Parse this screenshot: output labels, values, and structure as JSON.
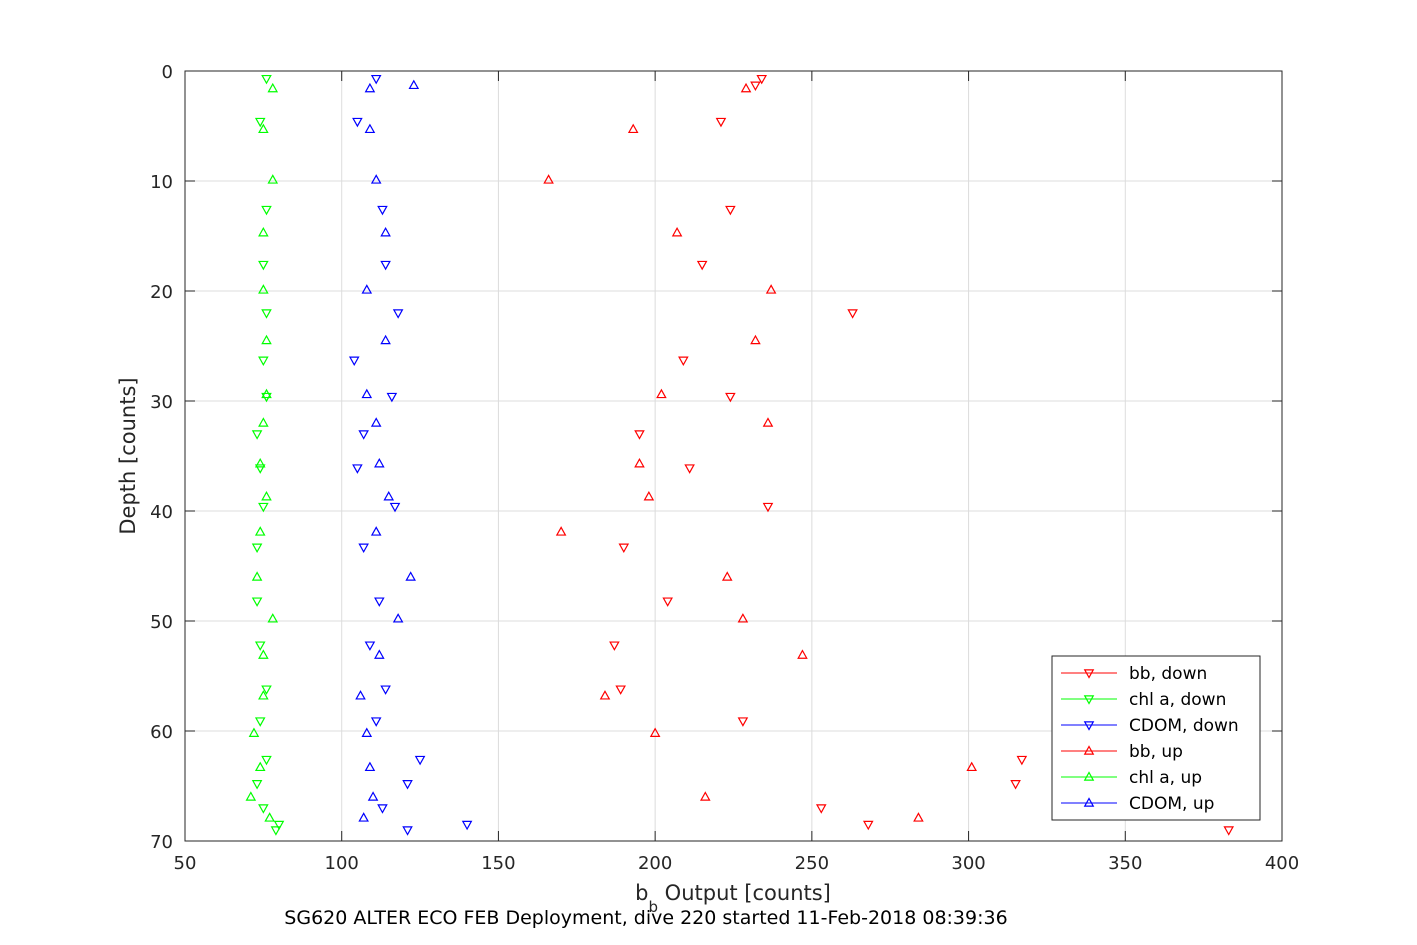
{
  "chart_data": {
    "type": "scatter",
    "xlabel": "b",
    "xlabel_sub": "b",
    "xlabel_rest": " Output [counts]",
    "ylabel": "Depth [counts]",
    "caption": "SG620 ALTER ECO FEB Deployment, dive 220 started 11-Feb-2018 08:39:36",
    "xlim": [
      50,
      400
    ],
    "ylim": [
      0,
      70
    ],
    "y_reversed": true,
    "grid": true,
    "legend_position": "bottom-right",
    "x_ticks": [
      "50",
      "100",
      "150",
      "200",
      "250",
      "300",
      "350",
      "400"
    ],
    "y_ticks": [
      "0",
      "10",
      "20",
      "30",
      "40",
      "50",
      "60",
      "70"
    ],
    "series": [
      {
        "name": "bb, down",
        "color": "#ff0000",
        "marker": "triangle-down",
        "points": [
          [
            234,
            0.7
          ],
          [
            232,
            1.3
          ],
          [
            221,
            4.6
          ],
          [
            224,
            12.6
          ],
          [
            215,
            17.6
          ],
          [
            263,
            22.0
          ],
          [
            209,
            26.3
          ],
          [
            224,
            29.6
          ],
          [
            195,
            33.0
          ],
          [
            211,
            36.1
          ],
          [
            236,
            39.6
          ],
          [
            190,
            43.3
          ],
          [
            204,
            48.2
          ],
          [
            187,
            52.2
          ],
          [
            189,
            56.2
          ],
          [
            228,
            59.1
          ],
          [
            317,
            62.6
          ],
          [
            315,
            64.8
          ],
          [
            253,
            67.0
          ],
          [
            268,
            68.5
          ],
          [
            383,
            69.0
          ]
        ]
      },
      {
        "name": "chl a, down",
        "color": "#00ff00",
        "marker": "triangle-down",
        "points": [
          [
            76,
            0.7
          ],
          [
            74,
            4.6
          ],
          [
            76,
            12.6
          ],
          [
            75,
            17.6
          ],
          [
            76,
            22.0
          ],
          [
            75,
            26.3
          ],
          [
            76,
            29.6
          ],
          [
            73,
            33.0
          ],
          [
            74,
            36.1
          ],
          [
            75,
            39.6
          ],
          [
            73,
            43.3
          ],
          [
            73,
            48.2
          ],
          [
            74,
            52.2
          ],
          [
            76,
            56.2
          ],
          [
            74,
            59.1
          ],
          [
            76,
            62.6
          ],
          [
            73,
            64.8
          ],
          [
            75,
            67.0
          ],
          [
            80,
            68.5
          ],
          [
            79,
            69.0
          ]
        ]
      },
      {
        "name": "CDOM, down",
        "color": "#0000ff",
        "marker": "triangle-down",
        "points": [
          [
            111,
            0.7
          ],
          [
            105,
            4.6
          ],
          [
            113,
            12.6
          ],
          [
            114,
            17.6
          ],
          [
            118,
            22.0
          ],
          [
            104,
            26.3
          ],
          [
            116,
            29.6
          ],
          [
            107,
            33.0
          ],
          [
            105,
            36.1
          ],
          [
            117,
            39.6
          ],
          [
            107,
            43.3
          ],
          [
            112,
            48.2
          ],
          [
            109,
            52.2
          ],
          [
            114,
            56.2
          ],
          [
            111,
            59.1
          ],
          [
            125,
            62.6
          ],
          [
            121,
            64.8
          ],
          [
            113,
            67.0
          ],
          [
            140,
            68.5
          ],
          [
            121,
            69.0
          ]
        ]
      },
      {
        "name": "bb, up",
        "color": "#ff0000",
        "marker": "triangle-up",
        "points": [
          [
            229,
            1.6
          ],
          [
            193,
            5.3
          ],
          [
            166,
            9.9
          ],
          [
            207,
            14.7
          ],
          [
            237,
            19.9
          ],
          [
            232,
            24.5
          ],
          [
            202,
            29.4
          ],
          [
            236,
            32.0
          ],
          [
            195,
            35.7
          ],
          [
            198,
            38.7
          ],
          [
            170,
            41.9
          ],
          [
            223,
            46.0
          ],
          [
            228,
            49.8
          ],
          [
            247,
            53.1
          ],
          [
            184,
            56.8
          ],
          [
            200,
            60.2
          ],
          [
            301,
            63.3
          ],
          [
            216,
            66.0
          ],
          [
            284,
            67.9
          ]
        ]
      },
      {
        "name": "chl a, up",
        "color": "#00ff00",
        "marker": "triangle-up",
        "points": [
          [
            78,
            1.6
          ],
          [
            75,
            5.3
          ],
          [
            78,
            9.9
          ],
          [
            75,
            14.7
          ],
          [
            75,
            19.9
          ],
          [
            76,
            24.5
          ],
          [
            76,
            29.4
          ],
          [
            75,
            32.0
          ],
          [
            74,
            35.7
          ],
          [
            76,
            38.7
          ],
          [
            74,
            41.9
          ],
          [
            73,
            46.0
          ],
          [
            78,
            49.8
          ],
          [
            75,
            53.1
          ],
          [
            75,
            56.8
          ],
          [
            72,
            60.2
          ],
          [
            74,
            63.3
          ],
          [
            71,
            66.0
          ],
          [
            77,
            67.9
          ]
        ]
      },
      {
        "name": "CDOM, up",
        "color": "#0000ff",
        "marker": "triangle-up",
        "points": [
          [
            123,
            1.3
          ],
          [
            109,
            1.6
          ],
          [
            109,
            5.3
          ],
          [
            111,
            9.9
          ],
          [
            114,
            14.7
          ],
          [
            108,
            19.9
          ],
          [
            114,
            24.5
          ],
          [
            108,
            29.4
          ],
          [
            111,
            32.0
          ],
          [
            112,
            35.7
          ],
          [
            115,
            38.7
          ],
          [
            111,
            41.9
          ],
          [
            122,
            46.0
          ],
          [
            118,
            49.8
          ],
          [
            112,
            53.1
          ],
          [
            106,
            56.8
          ],
          [
            108,
            60.2
          ],
          [
            109,
            63.3
          ],
          [
            110,
            66.0
          ],
          [
            107,
            67.9
          ]
        ]
      }
    ]
  }
}
